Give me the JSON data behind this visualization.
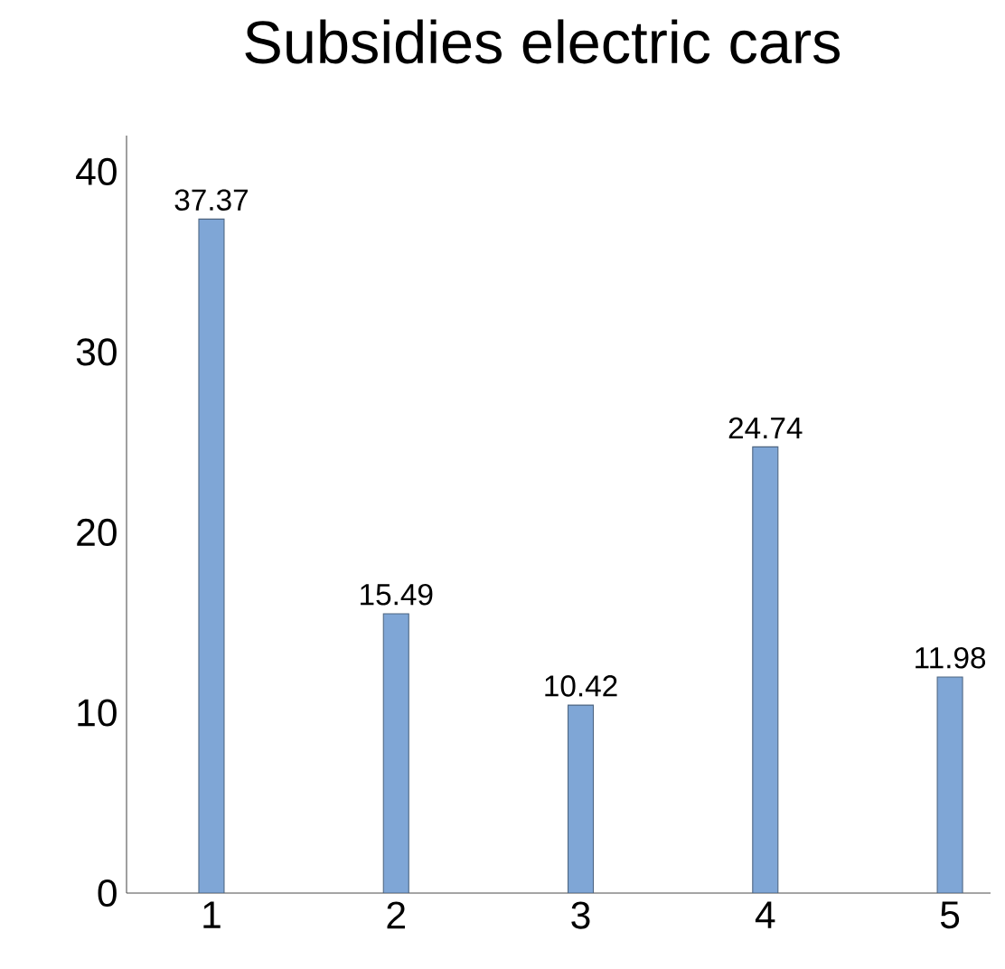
{
  "chart_data": {
    "type": "bar",
    "title": "Subsidies electric cars",
    "categories": [
      "1",
      "2",
      "3",
      "4",
      "5"
    ],
    "values": [
      37.37,
      15.49,
      10.42,
      24.74,
      11.98
    ],
    "color": "#7fa6d6",
    "ylim": [
      0,
      42
    ],
    "yticks": [
      0,
      10,
      20,
      30,
      40
    ],
    "data_labels": true,
    "grid": false
  }
}
